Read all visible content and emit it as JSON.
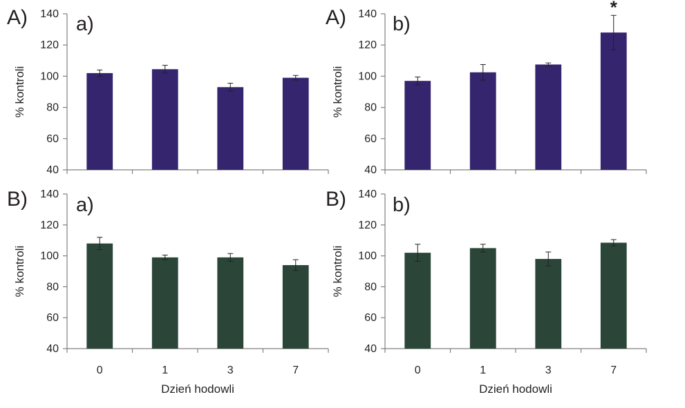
{
  "x_axis_label": "Dzień hodowli",
  "chart_data": [
    {
      "type": "bar",
      "panel_letter": "A)",
      "sub_letter": "a)",
      "categories": [
        "0",
        "1",
        "3",
        "7"
      ],
      "values": [
        102,
        104.5,
        93,
        99
      ],
      "errors": [
        2,
        2.5,
        2.5,
        1.5
      ],
      "annotations": [
        "",
        "",
        "",
        ""
      ],
      "ylabel": "% kontroli",
      "ylim": [
        40,
        140
      ],
      "yticks": [
        "40",
        "60",
        "80",
        "100",
        "120",
        "140"
      ],
      "color": "#35256f",
      "show_x_tick_labels": false
    },
    {
      "type": "bar",
      "panel_letter": "A)",
      "sub_letter": "b)",
      "categories": [
        "0",
        "1",
        "3",
        "7"
      ],
      "values": [
        97,
        102.5,
        107.5,
        128
      ],
      "errors": [
        2.5,
        5,
        1,
        11
      ],
      "annotations": [
        "",
        "",
        "",
        "*"
      ],
      "ylabel": "% kontroli",
      "ylim": [
        40,
        140
      ],
      "yticks": [
        "40",
        "60",
        "80",
        "100",
        "120",
        "140"
      ],
      "color": "#35256f",
      "show_x_tick_labels": false
    },
    {
      "type": "bar",
      "panel_letter": "B)",
      "sub_letter": "a)",
      "categories": [
        "0",
        "1",
        "3",
        "7"
      ],
      "values": [
        108,
        99,
        99,
        94
      ],
      "errors": [
        4,
        1.5,
        2.5,
        3.5
      ],
      "annotations": [
        "",
        "",
        "",
        ""
      ],
      "ylabel": "% kontroli",
      "ylim": [
        40,
        140
      ],
      "yticks": [
        "40",
        "60",
        "80",
        "100",
        "120",
        "140"
      ],
      "color": "#2b4638",
      "show_x_tick_labels": true
    },
    {
      "type": "bar",
      "panel_letter": "B)",
      "sub_letter": "b)",
      "categories": [
        "0",
        "1",
        "3",
        "7"
      ],
      "values": [
        102,
        105,
        98,
        108.5
      ],
      "errors": [
        5.5,
        2.5,
        4.5,
        2
      ],
      "annotations": [
        "",
        "",
        "",
        ""
      ],
      "ylabel": "% kontroli",
      "ylim": [
        40,
        140
      ],
      "yticks": [
        "40",
        "60",
        "80",
        "100",
        "120",
        "140"
      ],
      "color": "#2b4638",
      "show_x_tick_labels": true
    }
  ]
}
